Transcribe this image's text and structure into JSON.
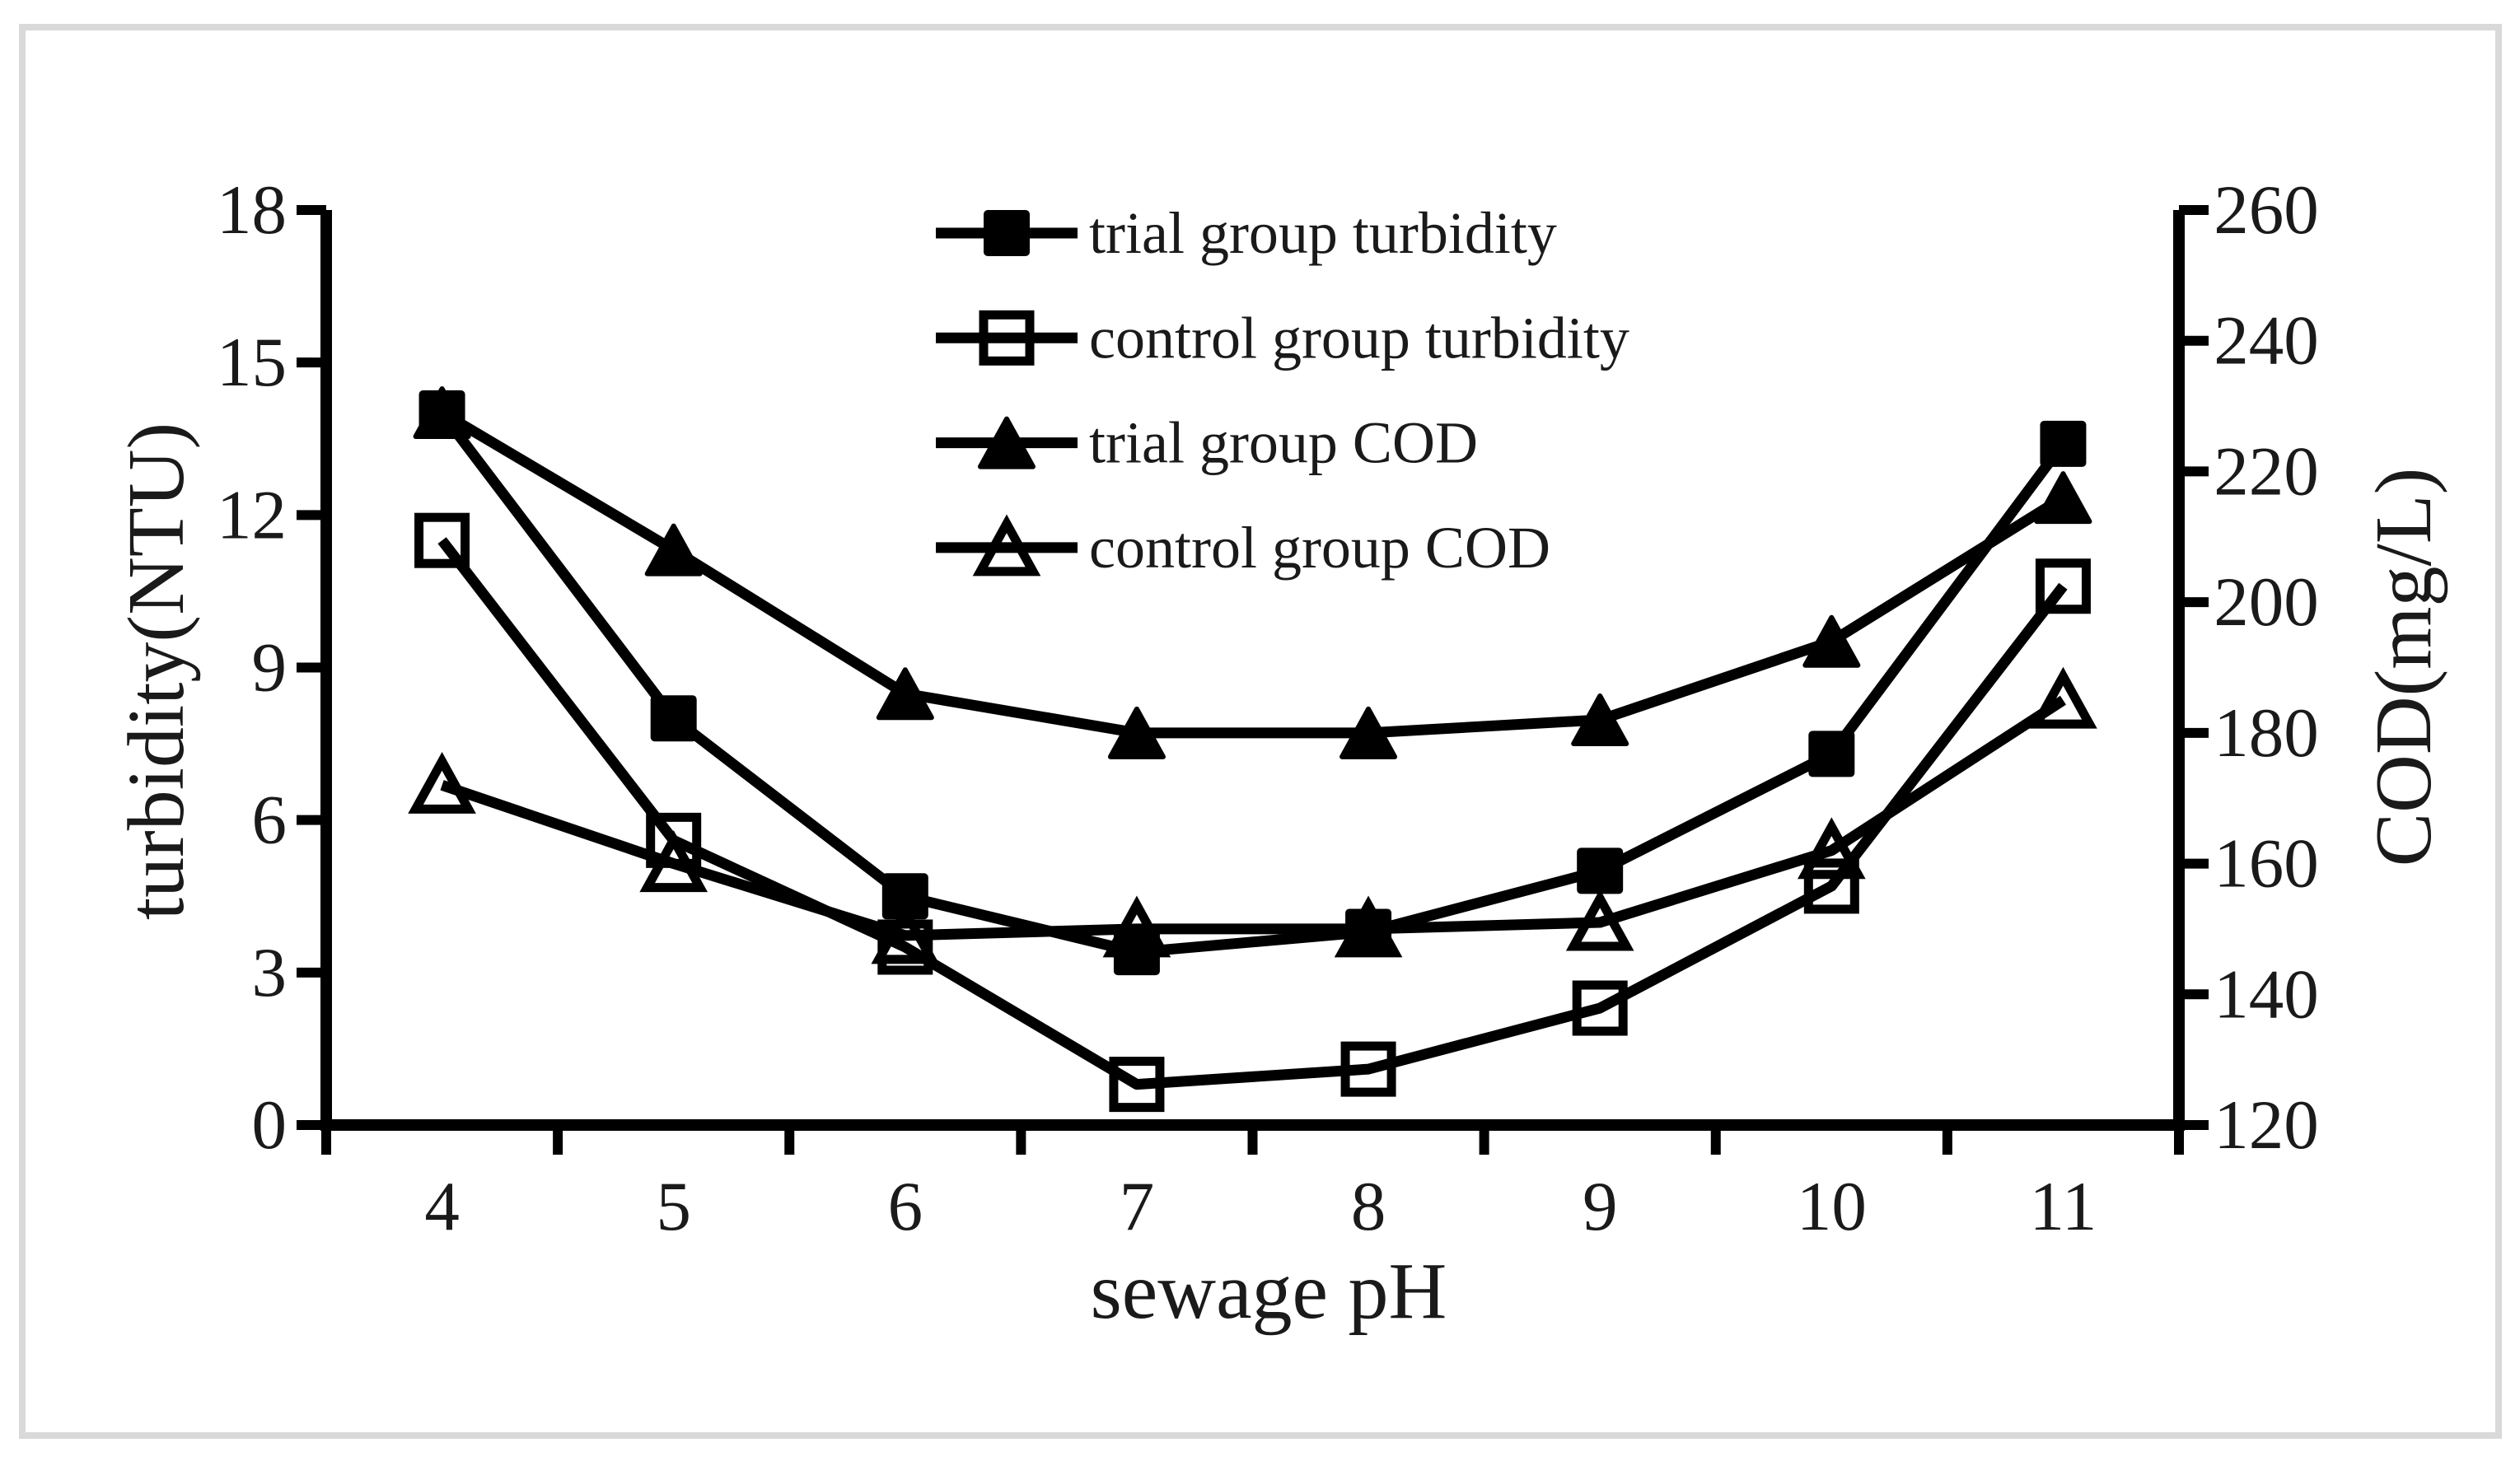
{
  "figure": {
    "background": "#ffffff",
    "border_color": "#d9d9d9",
    "ink_color": "#000000"
  },
  "chart_data": {
    "type": "line",
    "title": "",
    "xlabel": "sewage pH",
    "ylabel_left": "turbidity(NTU)",
    "ylabel_right": "COD(mg/L)",
    "x": [
      4,
      5,
      6,
      7,
      8,
      9,
      10,
      11
    ],
    "x_tick_labels": [
      "4",
      "5",
      "6",
      "7",
      "8",
      "9",
      "10",
      "11"
    ],
    "y_left_ticks": [
      0,
      3,
      6,
      9,
      12,
      15,
      18
    ],
    "y_left_tick_labels": [
      "0",
      "3",
      "6",
      "9",
      "12",
      "15",
      "18"
    ],
    "y_right_ticks": [
      120,
      140,
      160,
      180,
      200,
      220,
      240,
      260
    ],
    "y_right_tick_labels": [
      "120",
      "140",
      "160",
      "180",
      "200",
      "220",
      "240",
      "260"
    ],
    "ylim_left": [
      0,
      18
    ],
    "ylim_right": [
      120,
      260
    ],
    "grid": false,
    "legend_position": "top-center-inside",
    "series": [
      {
        "name": "trial group turbidity",
        "axis": "left",
        "marker": "filled-square",
        "values": [
          14.0,
          8.0,
          4.5,
          3.4,
          3.8,
          5.0,
          7.3,
          13.4
        ]
      },
      {
        "name": "control group turbidity",
        "axis": "left",
        "marker": "open-square",
        "values": [
          11.5,
          5.6,
          3.5,
          0.8,
          1.1,
          2.3,
          4.7,
          10.6
        ]
      },
      {
        "name": "trial group COD",
        "axis": "right",
        "marker": "filled-triangle",
        "values": [
          229,
          208,
          186,
          180,
          180,
          182,
          194,
          216
        ]
      },
      {
        "name": "control group COD",
        "axis": "right",
        "marker": "open-triangle",
        "values": [
          172,
          160,
          149,
          150,
          150,
          151,
          162,
          185
        ]
      }
    ]
  }
}
